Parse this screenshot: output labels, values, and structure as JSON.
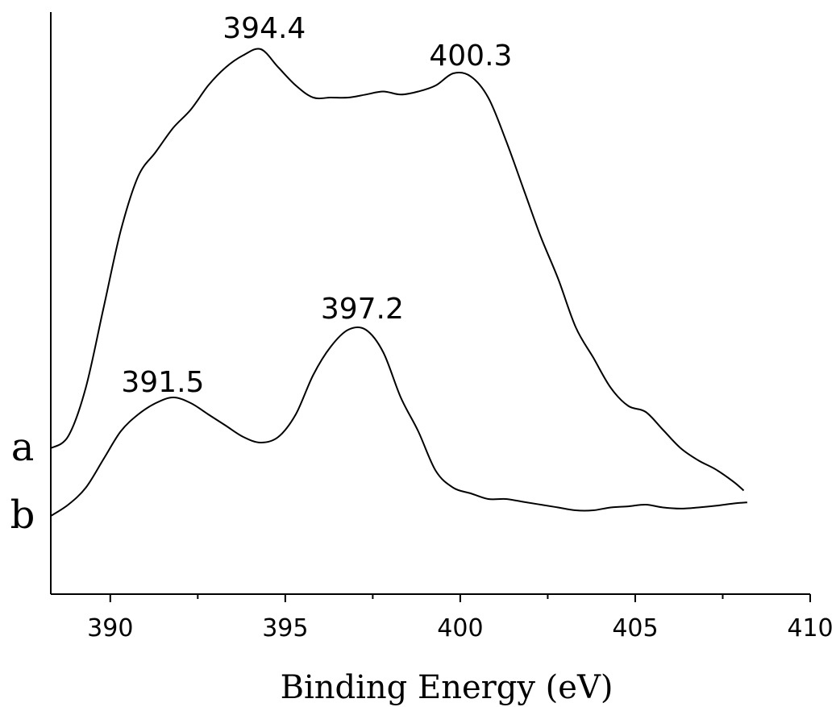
{
  "chart_data": {
    "type": "line",
    "xlabel": "Binding Energy (eV)",
    "ylabel": "",
    "xlim": [
      388.3,
      410
    ],
    "ylim": [
      0,
      1
    ],
    "x_ticks": [
      390,
      395,
      400,
      405,
      410
    ],
    "x_minor_ticks": [
      392.5,
      397.5,
      402.5,
      407.5
    ],
    "grid": false,
    "series": [
      {
        "name": "a",
        "x": [
          388.3,
          388.8,
          389.3,
          389.8,
          390.3,
          390.8,
          391.3,
          391.8,
          392.3,
          392.8,
          393.3,
          393.8,
          394.3,
          394.8,
          395.3,
          395.8,
          396.3,
          396.8,
          397.3,
          397.8,
          398.3,
          398.8,
          399.3,
          399.8,
          400.3,
          400.8,
          401.3,
          401.8,
          402.3,
          402.8,
          403.3,
          403.8,
          404.3,
          404.8,
          405.3,
          405.8,
          406.3,
          406.8,
          407.3,
          407.8,
          408.1
        ],
        "y": [
          0.27,
          0.29,
          0.37,
          0.5,
          0.63,
          0.72,
          0.76,
          0.8,
          0.83,
          0.87,
          0.9,
          0.92,
          0.93,
          0.9,
          0.87,
          0.85,
          0.85,
          0.85,
          0.855,
          0.86,
          0.855,
          0.86,
          0.87,
          0.89,
          0.885,
          0.85,
          0.78,
          0.7,
          0.62,
          0.55,
          0.47,
          0.42,
          0.37,
          0.34,
          0.33,
          0.3,
          0.27,
          0.25,
          0.235,
          0.215,
          0.2
        ]
      },
      {
        "name": "b",
        "x": [
          388.3,
          388.8,
          389.3,
          389.8,
          390.3,
          390.8,
          391.3,
          391.8,
          392.3,
          392.8,
          393.3,
          393.8,
          394.3,
          394.8,
          395.3,
          395.8,
          396.3,
          396.8,
          397.3,
          397.8,
          398.3,
          398.8,
          399.3,
          399.8,
          400.3,
          400.8,
          401.3,
          401.8,
          402.3,
          402.8,
          403.3,
          403.8,
          404.3,
          404.8,
          405.3,
          405.8,
          406.3,
          406.8,
          407.3,
          407.8,
          408.2
        ],
        "y": [
          0.15,
          0.17,
          0.2,
          0.25,
          0.3,
          0.33,
          0.35,
          0.36,
          0.35,
          0.33,
          0.31,
          0.29,
          0.28,
          0.29,
          0.33,
          0.4,
          0.45,
          0.48,
          0.48,
          0.44,
          0.36,
          0.3,
          0.23,
          0.2,
          0.19,
          0.18,
          0.18,
          0.175,
          0.17,
          0.165,
          0.16,
          0.16,
          0.165,
          0.167,
          0.17,
          0.165,
          0.163,
          0.165,
          0.168,
          0.172,
          0.174
        ]
      }
    ],
    "peak_annotations": [
      {
        "series": "a",
        "x": 394.4,
        "label": "394.4"
      },
      {
        "series": "a",
        "x": 400.3,
        "label": "400.3"
      },
      {
        "series": "b",
        "x": 391.5,
        "label": "391.5"
      },
      {
        "series": "b",
        "x": 397.2,
        "label": "397.2"
      }
    ]
  }
}
